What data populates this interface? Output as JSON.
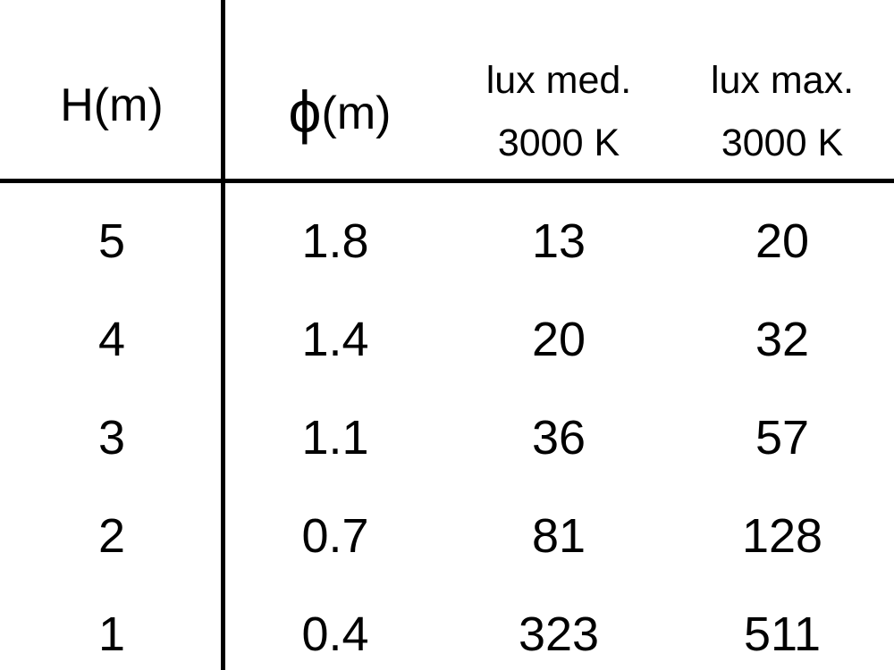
{
  "table": {
    "headers": [
      {
        "line1": "H(m)"
      },
      {
        "symbol": "ϕ",
        "line1": "(m)"
      },
      {
        "line1": "lux med.",
        "line2": "3000 K"
      },
      {
        "line1": "lux max.",
        "line2": "3000 K"
      }
    ],
    "rows": [
      [
        "5",
        "1.8",
        "13",
        "20"
      ],
      [
        "4",
        "1.4",
        "20",
        "32"
      ],
      [
        "3",
        "1.1",
        "36",
        "57"
      ],
      [
        "2",
        "0.7",
        "81",
        "128"
      ],
      [
        "1",
        "0.4",
        "323",
        "511"
      ]
    ]
  }
}
